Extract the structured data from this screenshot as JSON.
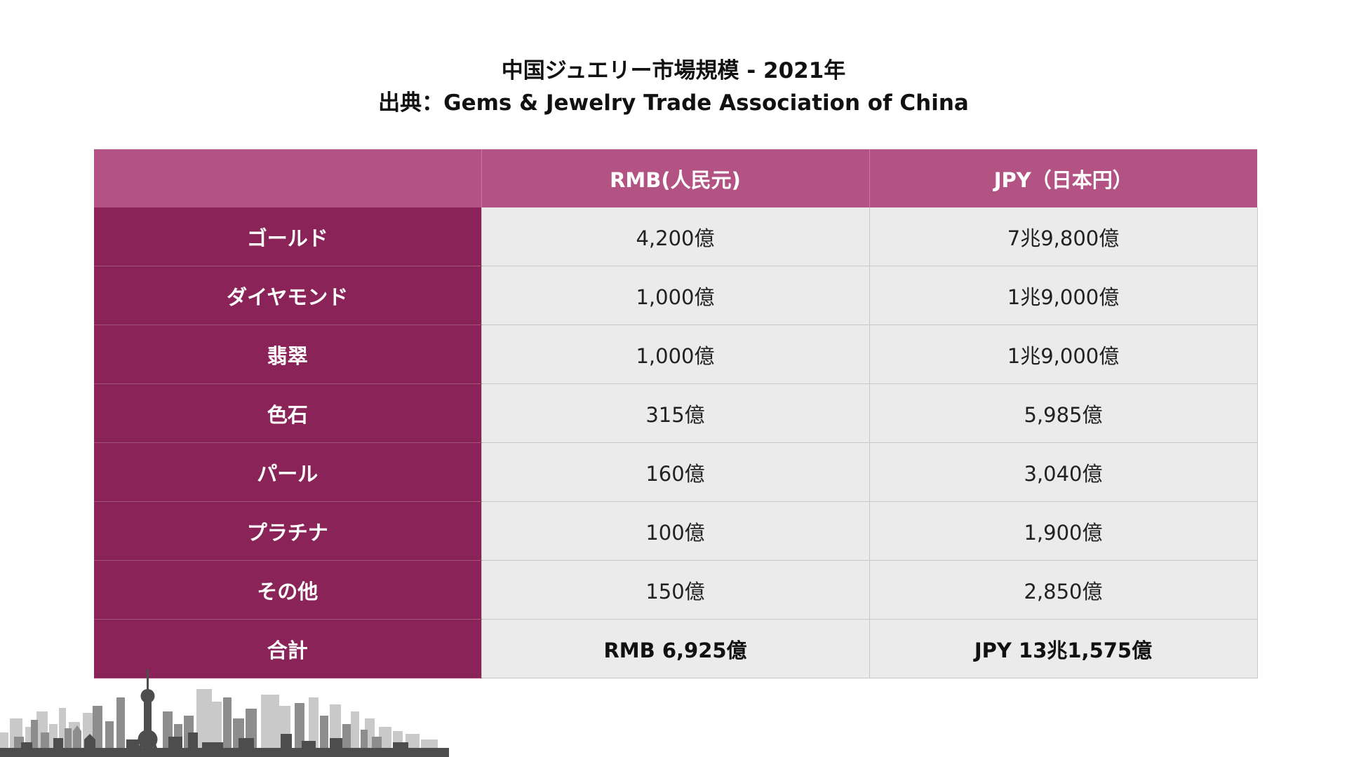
{
  "title": {
    "line1": "中国ジュエリー市場規模 - 2021年",
    "line2": "出典：Gems & Jewelry Trade Association of China"
  },
  "table": {
    "headers": [
      "",
      "RMB(人民元)",
      "JPY（日本円）"
    ],
    "rows": [
      {
        "label": "ゴールド",
        "rmb": "4,200億",
        "jpy": "7兆9,800億"
      },
      {
        "label": "ダイヤモンド",
        "rmb": "1,000億",
        "jpy": "1兆9,000億"
      },
      {
        "label": "翡翠",
        "rmb": "1,000億",
        "jpy": "1兆9,000億"
      },
      {
        "label": "色石",
        "rmb": "315億",
        "jpy": "5,985億"
      },
      {
        "label": "パール",
        "rmb": "160億",
        "jpy": "3,040億"
      },
      {
        "label": "プラチナ",
        "rmb": "100億",
        "jpy": "1,900億"
      },
      {
        "label": "その他",
        "rmb": "150億",
        "jpy": "2,850億"
      }
    ],
    "total": {
      "label": "合計",
      "rmb": "RMB 6,925億",
      "jpy": "JPY 13兆1,575億"
    }
  },
  "colors": {
    "header_bg": "#b25383",
    "label_bg": "#8a2358",
    "cell_bg": "#ebebeb"
  },
  "decoration": {
    "skyline_icon": "city-skyline-icon"
  }
}
